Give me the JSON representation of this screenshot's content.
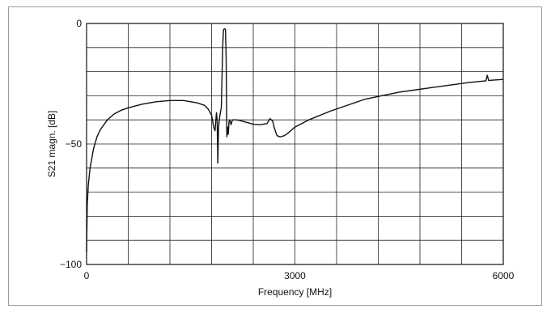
{
  "chart_data": {
    "type": "line",
    "title": "",
    "xlabel": "Frequency [MHz]",
    "ylabel": "S21 magn. [dB]",
    "xlim": [
      0,
      6000
    ],
    "ylim": [
      -100,
      0
    ],
    "x_ticks": [
      0,
      3000,
      6000
    ],
    "x_tick_labels": [
      "0",
      "3000",
      "6000"
    ],
    "y_ticks": [
      0,
      -50,
      -100
    ],
    "y_tick_labels": [
      "0",
      "−50",
      "−100"
    ],
    "x_grid_count": 10,
    "y_grid_count": 10,
    "grid": true,
    "legend": "none",
    "line_color": "#111111",
    "series": [
      {
        "x": [
          0,
          10,
          25,
          50,
          100,
          150,
          200,
          300,
          400,
          500,
          600,
          800,
          1000,
          1200,
          1400,
          1600,
          1700,
          1750,
          1800,
          1830,
          1850,
          1870,
          1880,
          1890,
          1900,
          1920,
          1940,
          1960,
          1970,
          1980,
          1990,
          2000,
          2010,
          2020,
          2030,
          2040,
          2050,
          2060,
          2080,
          2100,
          2150,
          2200,
          2300,
          2400,
          2500,
          2600,
          2640,
          2680,
          2700,
          2740,
          2780,
          2800,
          2850,
          2900,
          3000,
          3200,
          3500,
          4000,
          4500,
          5000,
          5500,
          5750,
          5770,
          5790,
          5810,
          6000
        ],
        "y": [
          -95,
          -75,
          -67,
          -60,
          -52,
          -47,
          -44,
          -40,
          -37.5,
          -36,
          -35,
          -33.5,
          -32.5,
          -32,
          -32,
          -33,
          -34,
          -35.5,
          -38,
          -43,
          -44.5,
          -37,
          -40,
          -58,
          -43,
          -38,
          -35,
          -10,
          -3,
          -2.3,
          -2.2,
          -2.5,
          -15,
          -47,
          -43,
          -46,
          -41,
          -40,
          -42,
          -40,
          -40,
          -40.2,
          -41,
          -41.8,
          -42,
          -41.5,
          -39.5,
          -40.5,
          -43,
          -46.5,
          -47,
          -47,
          -46.5,
          -45.5,
          -43,
          -40,
          -36.5,
          -31.5,
          -28.5,
          -26.5,
          -24.5,
          -23.8,
          -21.5,
          -23.7,
          -23.6,
          -23.2
        ]
      }
    ]
  }
}
